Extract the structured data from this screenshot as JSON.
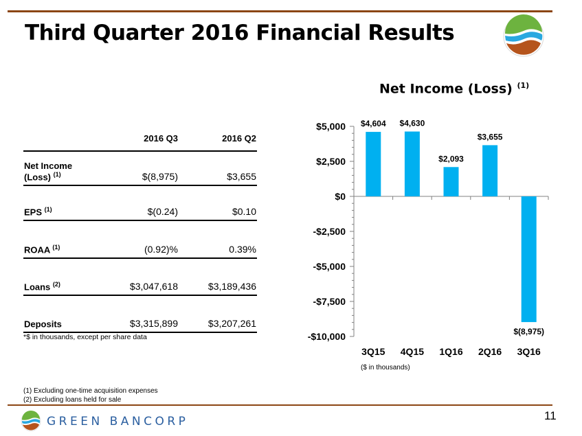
{
  "slide": {
    "title": "Third Quarter 2016 Financial Results",
    "page_number": "11",
    "brand_name": "GREEN BANCORP"
  },
  "table": {
    "headers": [
      "",
      "2016 Q3",
      "2016 Q2"
    ],
    "rows": [
      {
        "label": "Net Income (Loss)",
        "footnote": "(1)",
        "q3": "$(8,975)",
        "q2": "$3,655"
      },
      {
        "label": "EPS",
        "footnote": "(1)",
        "q3": "$(0.24)",
        "q2": "$0.10"
      },
      {
        "label": "ROAA",
        "footnote": "(1)",
        "q3": "(0.92)%",
        "q2": "0.39%"
      },
      {
        "label": "Loans",
        "footnote": "(2)",
        "q3": "$3,047,618",
        "q2": "$3,189,436"
      },
      {
        "label": "Deposits",
        "footnote": "",
        "q3": "$3,315,899",
        "q2": "$3,207,261"
      }
    ],
    "note": "*$ in thousands, except per share data"
  },
  "footnotes": [
    "(1) Excluding one-time acquisition expenses",
    "(2) Excluding loans held for sale"
  ],
  "chart_data": {
    "type": "bar",
    "title": "Net Income (Loss)",
    "title_footnote": "(1)",
    "categories": [
      "3Q15",
      "4Q15",
      "1Q16",
      "2Q16",
      "3Q16"
    ],
    "values": [
      4604,
      4630,
      2093,
      3655,
      -8975
    ],
    "data_labels": [
      "$4,604",
      "$4,630",
      "$2,093",
      "$3,655",
      "$(8,975)"
    ],
    "ylim": [
      -10000,
      5000
    ],
    "yticks": [
      5000,
      2500,
      0,
      -2500,
      -5000,
      -7500,
      -10000
    ],
    "ytick_labels": [
      "$5,000",
      "$2,500",
      "$0",
      "-$2,500",
      "-$5,000",
      "-$7,500",
      "-$10,000"
    ],
    "xlabel": "($ in thousands)",
    "ylabel": "",
    "grid": false,
    "bar_color": "#00B0F0"
  },
  "colors": {
    "rule": "#8B4513",
    "brand_blue": "#2B5FA0",
    "logo_green": "#6DB33F",
    "logo_blue": "#29A8E0",
    "logo_brown": "#B5541C"
  },
  "icons": {
    "logo": "green-bancorp-logo-icon"
  }
}
